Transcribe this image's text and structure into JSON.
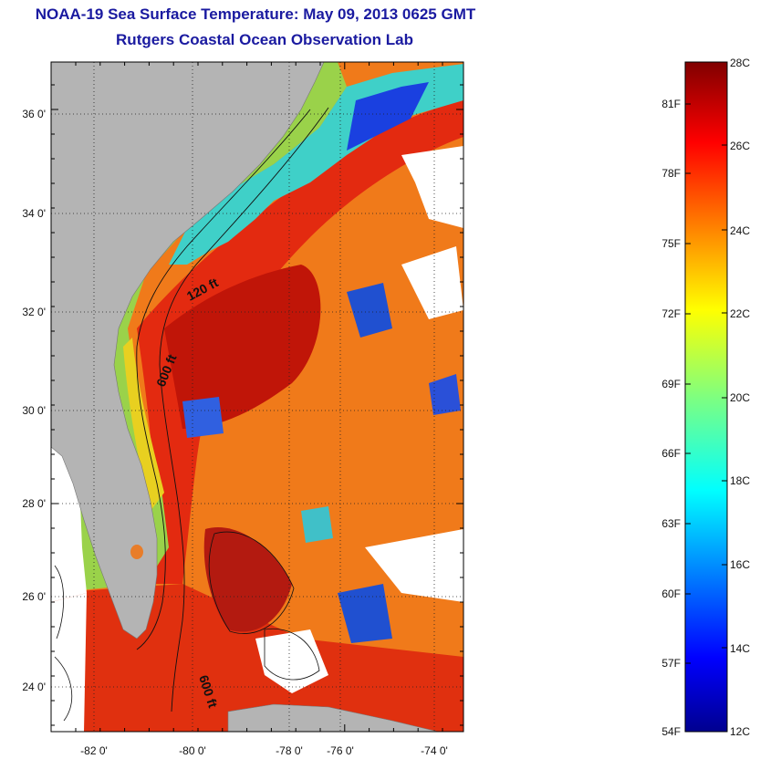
{
  "title": {
    "line1": "NOAA-19 Sea Surface Temperature:  May 09, 2013 0625 GMT",
    "line2": "Rutgers Coastal Ocean Observation Lab"
  },
  "map": {
    "lon_ticks": [
      "-82 0'",
      "-80 0'",
      "-78 0'",
      "-76 0'",
      "-74 0'"
    ],
    "lat_ticks": [
      "36 0'",
      "34 0'",
      "32 0'",
      "30 0'",
      "28 0'",
      "26 0'",
      "24 0'"
    ],
    "contours": [
      "120 ft",
      "600 ft",
      "600 ft"
    ],
    "land_color": "#b4b4b4"
  },
  "colorbar": {
    "fahrenheit": [
      "81F",
      "78F",
      "75F",
      "72F",
      "69F",
      "66F",
      "63F",
      "60F",
      "57F",
      "54F"
    ],
    "celsius": [
      "28C",
      "26C",
      "24C",
      "22C",
      "20C",
      "18C",
      "16C",
      "14C",
      "12C"
    ],
    "range_c": [
      12,
      28
    ],
    "colormap": "jet"
  }
}
